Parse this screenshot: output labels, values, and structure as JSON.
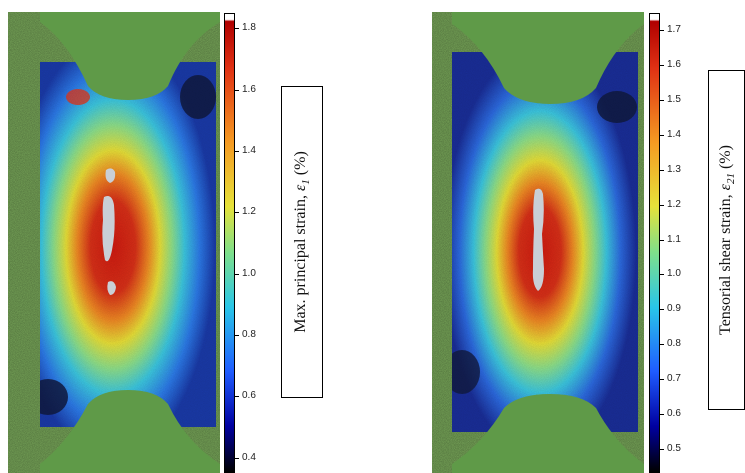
{
  "panels": [
    {
      "id": "left",
      "colorbar": {
        "ticks": [
          "1.8",
          "1.6",
          "1.4",
          "1.2",
          "1.0",
          "0.8",
          "0.6",
          "0.4"
        ],
        "tick_values": [
          1.8,
          1.6,
          1.4,
          1.2,
          1.0,
          0.8,
          0.6,
          0.4
        ],
        "range": [
          0.35,
          1.85
        ]
      },
      "label_main": "Max. principal strain, ",
      "label_symbol": "ε",
      "label_sub": "1",
      "label_unit": " (%)"
    },
    {
      "id": "right",
      "colorbar": {
        "ticks": [
          "1.7",
          "1.6",
          "1.5",
          "1.4",
          "1.3",
          "1.2",
          "1.1",
          "1.0",
          "0.9",
          "0.8",
          "0.7",
          "0.6",
          "0.5"
        ],
        "tick_values": [
          1.7,
          1.6,
          1.5,
          1.4,
          1.3,
          1.2,
          1.1,
          1.0,
          0.9,
          0.8,
          0.7,
          0.6,
          0.5
        ],
        "range": [
          0.43,
          1.75
        ]
      },
      "label_main": "Tensorial shear strain, ",
      "label_symbol": "ε",
      "label_sub": "21",
      "label_unit": " (%)"
    }
  ],
  "colormap": [
    "#000000",
    "#0000a0",
    "#1f5cff",
    "#29c6e8",
    "#7fe08a",
    "#e6e23a",
    "#f59a22",
    "#e03214",
    "#b00000",
    "#ffffff"
  ]
}
